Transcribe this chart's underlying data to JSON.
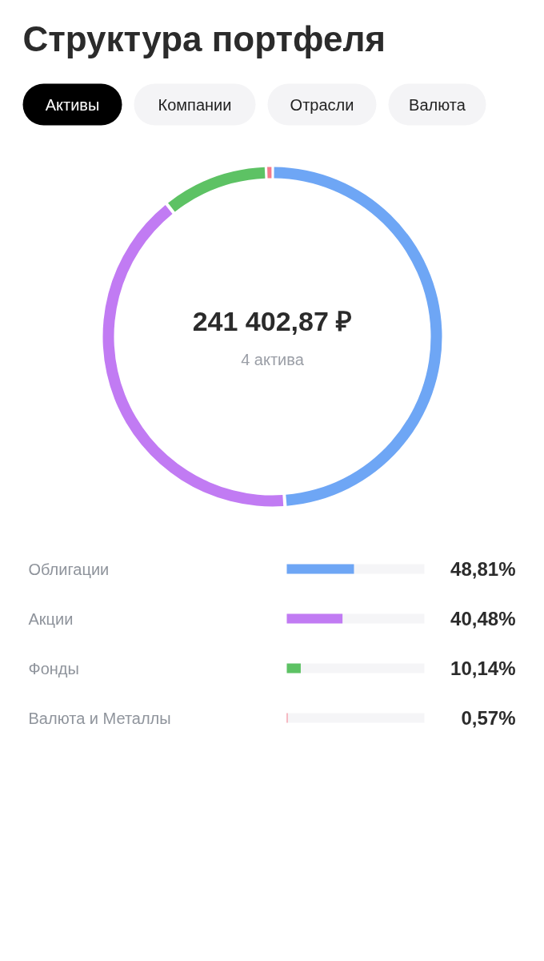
{
  "chart_data": [
    {
      "type": "donut",
      "title": "Структура портфеля",
      "annotations": [
        "Активы",
        "Компании",
        "Отрасли",
        "Валюта",
        "241 402,87 ₽",
        "4 актива"
      ],
      "categories": [
        null,
        null,
        null,
        null
      ],
      "values": [
        48.81,
        40.48,
        10.14,
        0.57
      ],
      "colors": [
        "#6ea6f5",
        "#c17bf3",
        "#5dc264",
        "#f47a8b"
      ]
    },
    {
      "type": "bar",
      "orientation": "horizontal",
      "categories": [
        "Облигации",
        "Акции",
        "Фонды",
        "Валюта и Металлы"
      ],
      "values": [
        48.81,
        40.48,
        10.14,
        0.57
      ],
      "colors": [
        "#6ea6f5",
        "#c17bf3",
        "#5dc264",
        "#f47a8b"
      ],
      "xlim": [
        0,
        100
      ],
      "tick_labels": "y",
      "value_labels": [
        "48,81%",
        "40,48%",
        "10,14%",
        "0,57%"
      ]
    }
  ]
}
